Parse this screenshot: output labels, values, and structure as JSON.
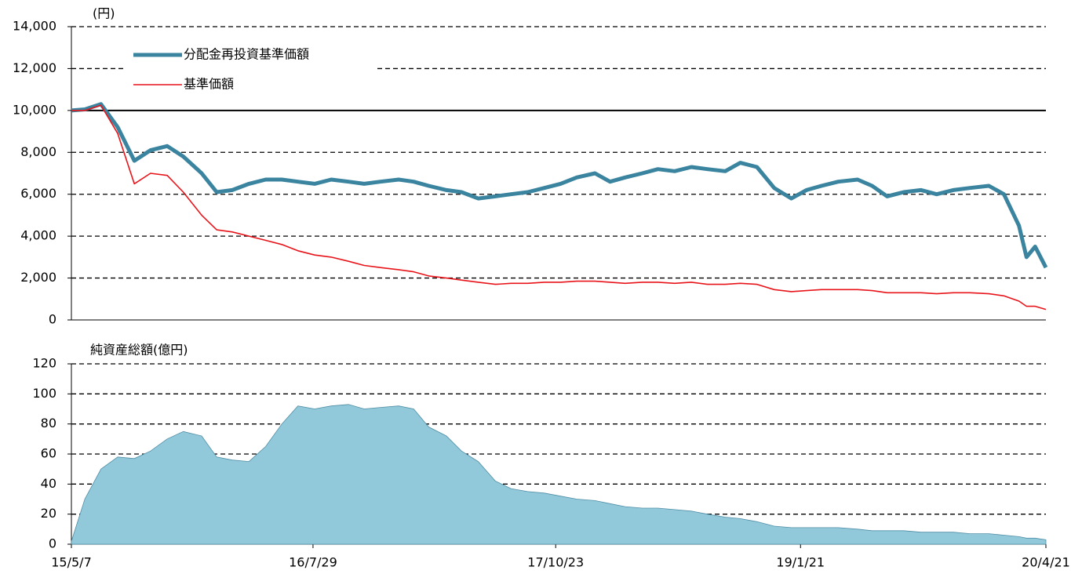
{
  "chart_data": [
    {
      "type": "line",
      "y_label": "(円)",
      "x": [
        "15/5/7",
        "15/6/1",
        "15/7/1",
        "15/8/1",
        "15/9/1",
        "15/10/1",
        "15/11/1",
        "15/12/1",
        "16/1/4",
        "16/2/1",
        "16/3/1",
        "16/4/1",
        "16/5/2",
        "16/6/1",
        "16/7/1",
        "16/8/1",
        "16/9/1",
        "16/10/3",
        "16/11/1",
        "16/12/1",
        "17/1/4",
        "17/2/1",
        "17/3/1",
        "17/4/3",
        "17/5/1",
        "17/6/1",
        "17/7/3",
        "17/8/1",
        "17/9/1",
        "17/10/2",
        "17/11/1",
        "17/12/1",
        "18/1/4",
        "18/2/1",
        "18/3/1",
        "18/4/2",
        "18/5/1",
        "18/6/1",
        "18/7/2",
        "18/8/1",
        "18/9/3",
        "18/10/1",
        "18/11/1",
        "18/12/3",
        "19/1/4",
        "19/2/1",
        "19/3/1",
        "19/4/1",
        "19/5/7",
        "19/6/3",
        "19/7/1",
        "19/8/1",
        "19/9/2",
        "19/10/1",
        "19/11/1",
        "19/12/2",
        "20/1/6",
        "20/2/3",
        "20/3/2",
        "20/3/16",
        "20/4/1",
        "20/4/21"
      ],
      "series": [
        {
          "name": "分配金再投資基準価額",
          "color": "#3a84a0",
          "values": [
            10000,
            10050,
            10300,
            9200,
            7600,
            8100,
            8300,
            7800,
            7000,
            6100,
            6200,
            6500,
            6700,
            6700,
            6600,
            6500,
            6700,
            6600,
            6500,
            6600,
            6700,
            6600,
            6400,
            6200,
            6100,
            5800,
            5900,
            6000,
            6100,
            6300,
            6500,
            6800,
            7000,
            6600,
            6800,
            7000,
            7200,
            7100,
            7300,
            7200,
            7100,
            7500,
            7300,
            6300,
            5800,
            6200,
            6400,
            6600,
            6700,
            6400,
            5900,
            6100,
            6200,
            6000,
            6200,
            6300,
            6400,
            6000,
            4500,
            3000,
            3500,
            2500
          ]
        },
        {
          "name": "基準価額",
          "color": "#e8141a",
          "values": [
            10000,
            10000,
            10250,
            8900,
            6500,
            7000,
            6900,
            6100,
            5000,
            4300,
            4200,
            4000,
            3800,
            3600,
            3300,
            3100,
            3000,
            2800,
            2600,
            2500,
            2400,
            2300,
            2100,
            2000,
            1900,
            1800,
            1700,
            1750,
            1750,
            1800,
            1800,
            1850,
            1850,
            1800,
            1750,
            1800,
            1800,
            1750,
            1800,
            1700,
            1700,
            1750,
            1700,
            1450,
            1350,
            1400,
            1450,
            1450,
            1450,
            1400,
            1300,
            1300,
            1300,
            1250,
            1300,
            1300,
            1250,
            1150,
            900,
            650,
            650,
            500
          ]
        }
      ],
      "ylim": [
        0,
        14000
      ],
      "yticks": [
        0,
        {
          "value": 2000,
          "label": "2,000"
        },
        {
          "value": 4000,
          "label": "4,000"
        },
        {
          "value": 6000,
          "label": "6,000"
        },
        {
          "value": 8000,
          "label": "8,000"
        },
        {
          "value": 10000,
          "label": "10,000"
        },
        {
          "value": 12000,
          "label": "12,000"
        },
        {
          "value": 14000,
          "label": "14,000"
        }
      ],
      "reference_line": 10000,
      "grid": true
    },
    {
      "type": "area",
      "title": "純資産総額(億円)",
      "color": "#92c9da",
      "x": [
        "15/5/7",
        "15/6/1",
        "15/7/1",
        "15/8/1",
        "15/9/1",
        "15/10/1",
        "15/11/1",
        "15/12/1",
        "16/1/4",
        "16/2/1",
        "16/3/1",
        "16/4/1",
        "16/5/2",
        "16/6/1",
        "16/7/1",
        "16/8/1",
        "16/9/1",
        "16/10/3",
        "16/11/1",
        "16/12/1",
        "17/1/4",
        "17/2/1",
        "17/3/1",
        "17/4/3",
        "17/5/1",
        "17/6/1",
        "17/7/3",
        "17/8/1",
        "17/9/1",
        "17/10/2",
        "17/11/1",
        "17/12/1",
        "18/1/4",
        "18/2/1",
        "18/3/1",
        "18/4/2",
        "18/5/1",
        "18/6/1",
        "18/7/2",
        "18/8/1",
        "18/9/3",
        "18/10/1",
        "18/11/1",
        "18/12/3",
        "19/1/4",
        "19/2/1",
        "19/3/1",
        "19/4/1",
        "19/5/7",
        "19/6/3",
        "19/7/1",
        "19/8/1",
        "19/9/2",
        "19/10/1",
        "19/11/1",
        "19/12/2",
        "20/1/6",
        "20/2/3",
        "20/3/2",
        "20/3/16",
        "20/4/1",
        "20/4/21"
      ],
      "values": [
        2,
        30,
        50,
        58,
        57,
        62,
        70,
        75,
        72,
        58,
        56,
        55,
        65,
        80,
        92,
        90,
        92,
        93,
        90,
        91,
        92,
        90,
        78,
        72,
        62,
        55,
        42,
        37,
        35,
        34,
        32,
        30,
        29,
        27,
        25,
        24,
        24,
        23,
        22,
        20,
        18,
        17,
        15,
        12,
        11,
        11,
        11,
        11,
        10,
        9,
        9,
        9,
        8,
        8,
        8,
        7,
        7,
        6,
        5,
        4,
        4,
        3
      ],
      "ylim": [
        0,
        120
      ],
      "yticks": [
        0,
        20,
        40,
        60,
        80,
        100,
        120
      ],
      "xticks": [
        "15/5/7",
        "16/7/29",
        "17/10/23",
        "19/1/21",
        "20/4/21"
      ],
      "grid": true
    }
  ]
}
